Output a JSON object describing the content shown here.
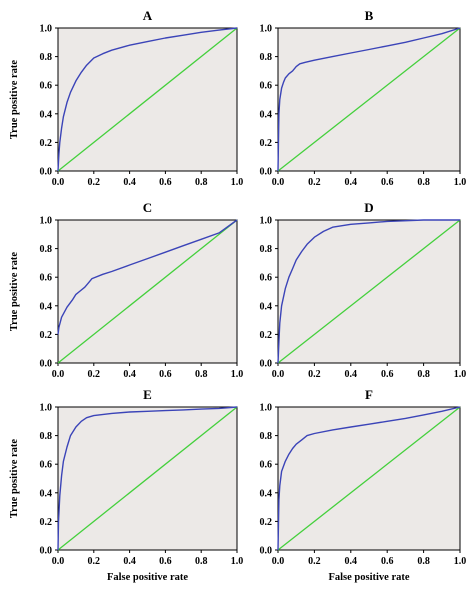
{
  "chart_data": [
    {
      "type": "line",
      "panel_label": "A",
      "xlabel": "",
      "ylabel": "True positive rate",
      "xlim": [
        0,
        1
      ],
      "ylim": [
        0,
        1
      ],
      "x_ticks": [
        "0.0",
        "0.2",
        "0.4",
        "0.6",
        "0.8",
        "1.0"
      ],
      "y_ticks": [
        "0.0",
        "0.2",
        "0.4",
        "0.6",
        "0.8",
        "1.0"
      ],
      "background": "#ece9e7",
      "series": [
        {
          "role": "roc",
          "color": "#3b44b8",
          "x": [
            0,
            0.005,
            0.01,
            0.02,
            0.03,
            0.05,
            0.07,
            0.1,
            0.13,
            0.16,
            0.2,
            0.25,
            0.3,
            0.4,
            0.5,
            0.6,
            0.7,
            0.8,
            0.9,
            1.0
          ],
          "y": [
            0,
            0.12,
            0.2,
            0.3,
            0.38,
            0.48,
            0.55,
            0.63,
            0.69,
            0.74,
            0.79,
            0.82,
            0.845,
            0.88,
            0.905,
            0.93,
            0.95,
            0.97,
            0.985,
            1.0
          ]
        },
        {
          "role": "chance",
          "color": "#44d03c",
          "x": [
            0,
            1
          ],
          "y": [
            0,
            1
          ]
        }
      ]
    },
    {
      "type": "line",
      "panel_label": "B",
      "xlabel": "",
      "ylabel": "",
      "xlim": [
        0,
        1
      ],
      "ylim": [
        0,
        1
      ],
      "x_ticks": [
        "0.0",
        "0.2",
        "0.4",
        "0.6",
        "0.8",
        "1.0"
      ],
      "y_ticks": [
        "0.0",
        "0.2",
        "0.4",
        "0.6",
        "0.8",
        "1.0"
      ],
      "background": "#ece9e7",
      "series": [
        {
          "role": "roc",
          "color": "#3b44b8",
          "x": [
            0,
            0.005,
            0.01,
            0.02,
            0.03,
            0.04,
            0.06,
            0.08,
            0.1,
            0.12,
            0.15,
            0.2,
            0.3,
            0.4,
            0.5,
            0.6,
            0.7,
            0.8,
            0.9,
            1.0
          ],
          "y": [
            0,
            0.4,
            0.5,
            0.58,
            0.62,
            0.65,
            0.68,
            0.7,
            0.73,
            0.75,
            0.76,
            0.775,
            0.8,
            0.825,
            0.85,
            0.875,
            0.9,
            0.93,
            0.96,
            1.0
          ]
        },
        {
          "role": "chance",
          "color": "#44d03c",
          "x": [
            0,
            1
          ],
          "y": [
            0,
            1
          ]
        }
      ]
    },
    {
      "type": "line",
      "panel_label": "C",
      "xlabel": "",
      "ylabel": "True positive rate",
      "xlim": [
        0,
        1
      ],
      "ylim": [
        0,
        1
      ],
      "x_ticks": [
        "0.0",
        "0.2",
        "0.4",
        "0.6",
        "0.8",
        "1.0"
      ],
      "y_ticks": [
        "0.0",
        "0.2",
        "0.4",
        "0.6",
        "0.8",
        "1.0"
      ],
      "background": "#ece9e7",
      "series": [
        {
          "role": "roc",
          "color": "#3b44b8",
          "x": [
            0,
            0.005,
            0.02,
            0.05,
            0.08,
            0.1,
            0.12,
            0.15,
            0.17,
            0.19,
            0.25,
            0.3,
            0.4,
            0.5,
            0.6,
            0.7,
            0.8,
            0.9,
            1.0
          ],
          "y": [
            0.2,
            0.25,
            0.32,
            0.39,
            0.44,
            0.48,
            0.5,
            0.53,
            0.56,
            0.59,
            0.62,
            0.64,
            0.685,
            0.73,
            0.775,
            0.82,
            0.865,
            0.91,
            1.0
          ]
        },
        {
          "role": "chance",
          "color": "#44d03c",
          "x": [
            0,
            1
          ],
          "y": [
            0,
            1
          ]
        }
      ]
    },
    {
      "type": "line",
      "panel_label": "D",
      "xlabel": "",
      "ylabel": "",
      "xlim": [
        0,
        1
      ],
      "ylim": [
        0,
        1
      ],
      "x_ticks": [
        "0.0",
        "0.2",
        "0.4",
        "0.6",
        "0.8",
        "1.0"
      ],
      "y_ticks": [
        "0.0",
        "0.2",
        "0.4",
        "0.6",
        "0.8",
        "1.0"
      ],
      "background": "#ece9e7",
      "series": [
        {
          "role": "roc",
          "color": "#3b44b8",
          "x": [
            0,
            0.005,
            0.01,
            0.02,
            0.04,
            0.06,
            0.08,
            0.1,
            0.13,
            0.16,
            0.2,
            0.25,
            0.3,
            0.4,
            0.5,
            0.6,
            0.8,
            1.0
          ],
          "y": [
            0,
            0.15,
            0.28,
            0.4,
            0.52,
            0.6,
            0.66,
            0.72,
            0.78,
            0.83,
            0.88,
            0.92,
            0.95,
            0.97,
            0.98,
            0.99,
            1.0,
            1.0
          ]
        },
        {
          "role": "chance",
          "color": "#44d03c",
          "x": [
            0,
            1
          ],
          "y": [
            0,
            1
          ]
        }
      ]
    },
    {
      "type": "line",
      "panel_label": "E",
      "xlabel": "False positive rate",
      "ylabel": "True positive rate",
      "xlim": [
        0,
        1
      ],
      "ylim": [
        0,
        1
      ],
      "x_ticks": [
        "0.0",
        "0.2",
        "0.4",
        "0.6",
        "0.8",
        "1.0"
      ],
      "y_ticks": [
        "0.0",
        "0.2",
        "0.4",
        "0.6",
        "0.8",
        "1.0"
      ],
      "background": "#ece9e7",
      "series": [
        {
          "role": "roc",
          "color": "#3b44b8",
          "x": [
            0,
            0.003,
            0.01,
            0.02,
            0.03,
            0.05,
            0.07,
            0.1,
            0.13,
            0.16,
            0.2,
            0.3,
            0.4,
            0.5,
            0.6,
            0.7,
            0.8,
            0.9,
            1.0
          ],
          "y": [
            0,
            0.2,
            0.38,
            0.52,
            0.62,
            0.72,
            0.8,
            0.86,
            0.9,
            0.925,
            0.94,
            0.955,
            0.965,
            0.97,
            0.975,
            0.98,
            0.985,
            0.99,
            1.0
          ]
        },
        {
          "role": "chance",
          "color": "#44d03c",
          "x": [
            0,
            1
          ],
          "y": [
            0,
            1
          ]
        }
      ]
    },
    {
      "type": "line",
      "panel_label": "F",
      "xlabel": "False positive rate",
      "ylabel": "",
      "xlim": [
        0,
        1
      ],
      "ylim": [
        0,
        1
      ],
      "x_ticks": [
        "0.0",
        "0.2",
        "0.4",
        "0.6",
        "0.8",
        "1.0"
      ],
      "y_ticks": [
        "0.0",
        "0.2",
        "0.4",
        "0.6",
        "0.8",
        "1.0"
      ],
      "background": "#ece9e7",
      "series": [
        {
          "role": "roc",
          "color": "#3b44b8",
          "x": [
            0,
            0.005,
            0.01,
            0.02,
            0.04,
            0.06,
            0.08,
            0.1,
            0.13,
            0.16,
            0.2,
            0.3,
            0.4,
            0.5,
            0.6,
            0.7,
            0.8,
            0.9,
            1.0
          ],
          "y": [
            0,
            0.35,
            0.45,
            0.55,
            0.62,
            0.67,
            0.71,
            0.74,
            0.77,
            0.8,
            0.815,
            0.84,
            0.86,
            0.88,
            0.9,
            0.92,
            0.945,
            0.97,
            1.0
          ]
        },
        {
          "role": "chance",
          "color": "#44d03c",
          "x": [
            0,
            1
          ],
          "y": [
            0,
            1
          ]
        }
      ]
    }
  ]
}
